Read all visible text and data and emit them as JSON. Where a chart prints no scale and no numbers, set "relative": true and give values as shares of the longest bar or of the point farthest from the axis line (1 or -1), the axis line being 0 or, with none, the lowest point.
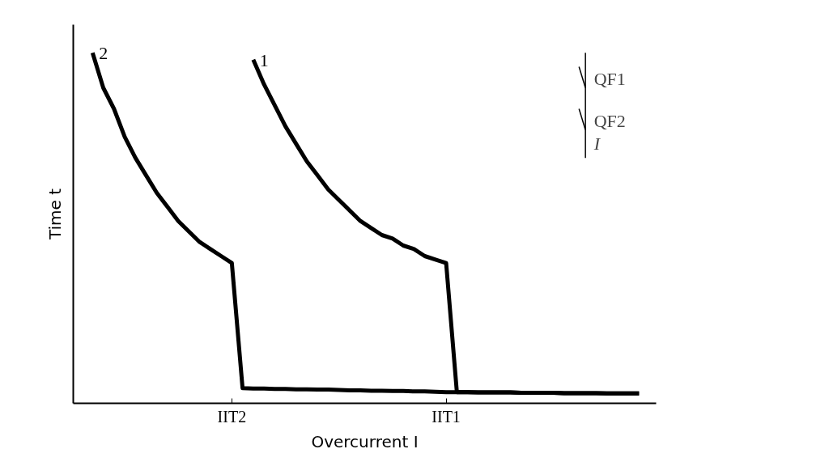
{
  "chart_data": {
    "type": "line",
    "relative": true,
    "xlabel": "Overcurrent I",
    "ylabel": "Time t",
    "categories": [
      null,
      null,
      null,
      null,
      null,
      null,
      null,
      null,
      null,
      null,
      null,
      null,
      null,
      "IIT2",
      null,
      null,
      null,
      null,
      null,
      null,
      null,
      null,
      null,
      null,
      null,
      null,
      null,
      null,
      null,
      null,
      null,
      null,
      null,
      "IIT1",
      null,
      null,
      null,
      null,
      null,
      null,
      null,
      null,
      null,
      null,
      null,
      null,
      null,
      null,
      null,
      null,
      null,
      null
    ],
    "grid": false,
    "marker": "none",
    "line_style": "solid",
    "annotations": [
      "QF1",
      "QF2",
      "I"
    ],
    "series": [
      {
        "name": "2",
        "color": "#000000",
        "values": [
          1.0,
          0.9,
          0.84,
          0.76,
          0.7,
          0.65,
          0.6,
          0.56,
          0.52,
          0.49,
          0.46,
          0.44,
          0.42,
          0.4,
          0.043,
          0.042,
          0.042,
          0.041,
          0.041,
          0.04,
          0.04,
          0.039,
          0.039,
          0.038,
          0.037,
          0.037,
          0.036,
          0.036,
          0.035,
          0.035,
          0.034,
          0.034,
          0.033,
          0.032,
          0.032,
          0.032,
          0.031,
          0.031,
          0.031,
          0.031,
          0.03,
          0.03,
          0.03,
          0.03,
          0.029,
          0.029,
          0.029,
          0.029,
          0.028,
          0.028,
          0.028,
          0.028
        ]
      },
      {
        "name": "1",
        "color": "#000000",
        "values": [
          null,
          null,
          null,
          null,
          null,
          null,
          null,
          null,
          null,
          null,
          null,
          null,
          null,
          null,
          null,
          0.98,
          0.91,
          0.85,
          0.79,
          0.74,
          0.69,
          0.65,
          0.61,
          0.58,
          0.55,
          0.52,
          0.5,
          0.48,
          0.47,
          0.45,
          0.44,
          0.42,
          0.41,
          0.4,
          0.032,
          0.032,
          0.031,
          0.031,
          0.031,
          0.031,
          0.03,
          0.03,
          0.03,
          0.03,
          0.029,
          0.029,
          0.029,
          0.029,
          0.028,
          0.028,
          0.028,
          0.028
        ]
      }
    ]
  }
}
